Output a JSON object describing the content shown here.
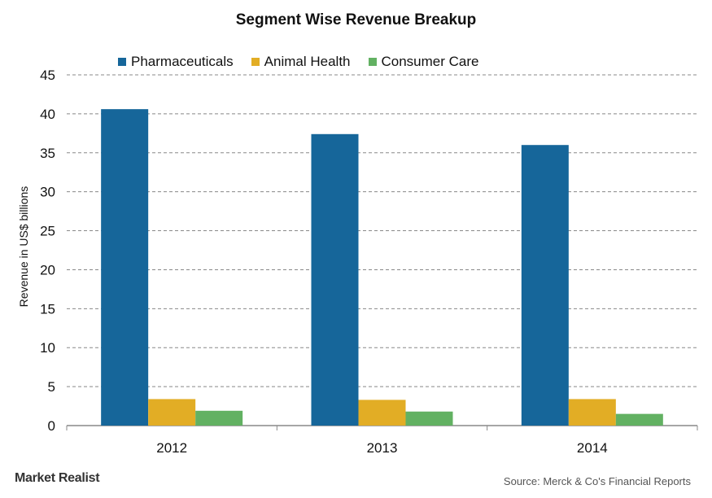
{
  "chart_data": {
    "type": "bar",
    "title": "Segment Wise Revenue  Breakup",
    "ylabel": "Revenue in US$ billions",
    "xlabel": "",
    "categories": [
      "2012",
      "2013",
      "2014"
    ],
    "series": [
      {
        "name": "Pharmaceuticals",
        "color": "#16669a",
        "values": [
          40.6,
          37.4,
          36.0
        ]
      },
      {
        "name": "Animal Health",
        "color": "#e2ad25",
        "values": [
          3.4,
          3.3,
          3.4
        ]
      },
      {
        "name": "Consumer Care",
        "color": "#62b162",
        "values": [
          1.9,
          1.8,
          1.5
        ]
      }
    ],
    "ylim": [
      0,
      45
    ],
    "yticks": [
      "0",
      "5",
      "10",
      "15",
      "20",
      "25",
      "30",
      "35",
      "40",
      "45"
    ],
    "grid": "dashed horizontal",
    "legend": "top"
  },
  "logo": "Market Realist",
  "source": "Source: Merck & Co's Financial Reports"
}
